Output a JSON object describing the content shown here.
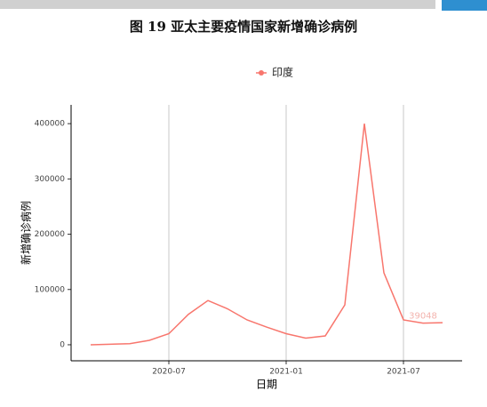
{
  "chart_data": {
    "type": "line",
    "title": "图 19 亚太主要疫情国家新增确诊病例",
    "x_label": "日期",
    "y_label": "新增确诊病例",
    "x": [
      "2020-03",
      "2020-04",
      "2020-05",
      "2020-06",
      "2020-07",
      "2020-08",
      "2020-09",
      "2020-10",
      "2020-11",
      "2020-12",
      "2021-01",
      "2021-02",
      "2021-03",
      "2021-04",
      "2021-05",
      "2021-06",
      "2021-07",
      "2021-08",
      "2021-09"
    ],
    "series": [
      {
        "name": "印度",
        "color": "#f8766d",
        "values": [
          0,
          1000,
          2000,
          8000,
          20000,
          55000,
          80000,
          65000,
          45000,
          32000,
          20000,
          12000,
          16000,
          72000,
          400000,
          130000,
          45000,
          39048,
          40000
        ],
        "value_labels": [
          null,
          null,
          null,
          null,
          null,
          null,
          null,
          null,
          null,
          null,
          null,
          null,
          null,
          null,
          null,
          null,
          null,
          "39048",
          null
        ]
      }
    ],
    "xlim": [
      "2020-02",
      "2021-10"
    ],
    "xticks": [
      "2020-07",
      "2021-01",
      "2021-07"
    ],
    "ylim": [
      -29000,
      434000
    ],
    "yticks": [
      0,
      100000,
      200000,
      300000,
      400000
    ],
    "grid": "x",
    "legend": "top"
  }
}
